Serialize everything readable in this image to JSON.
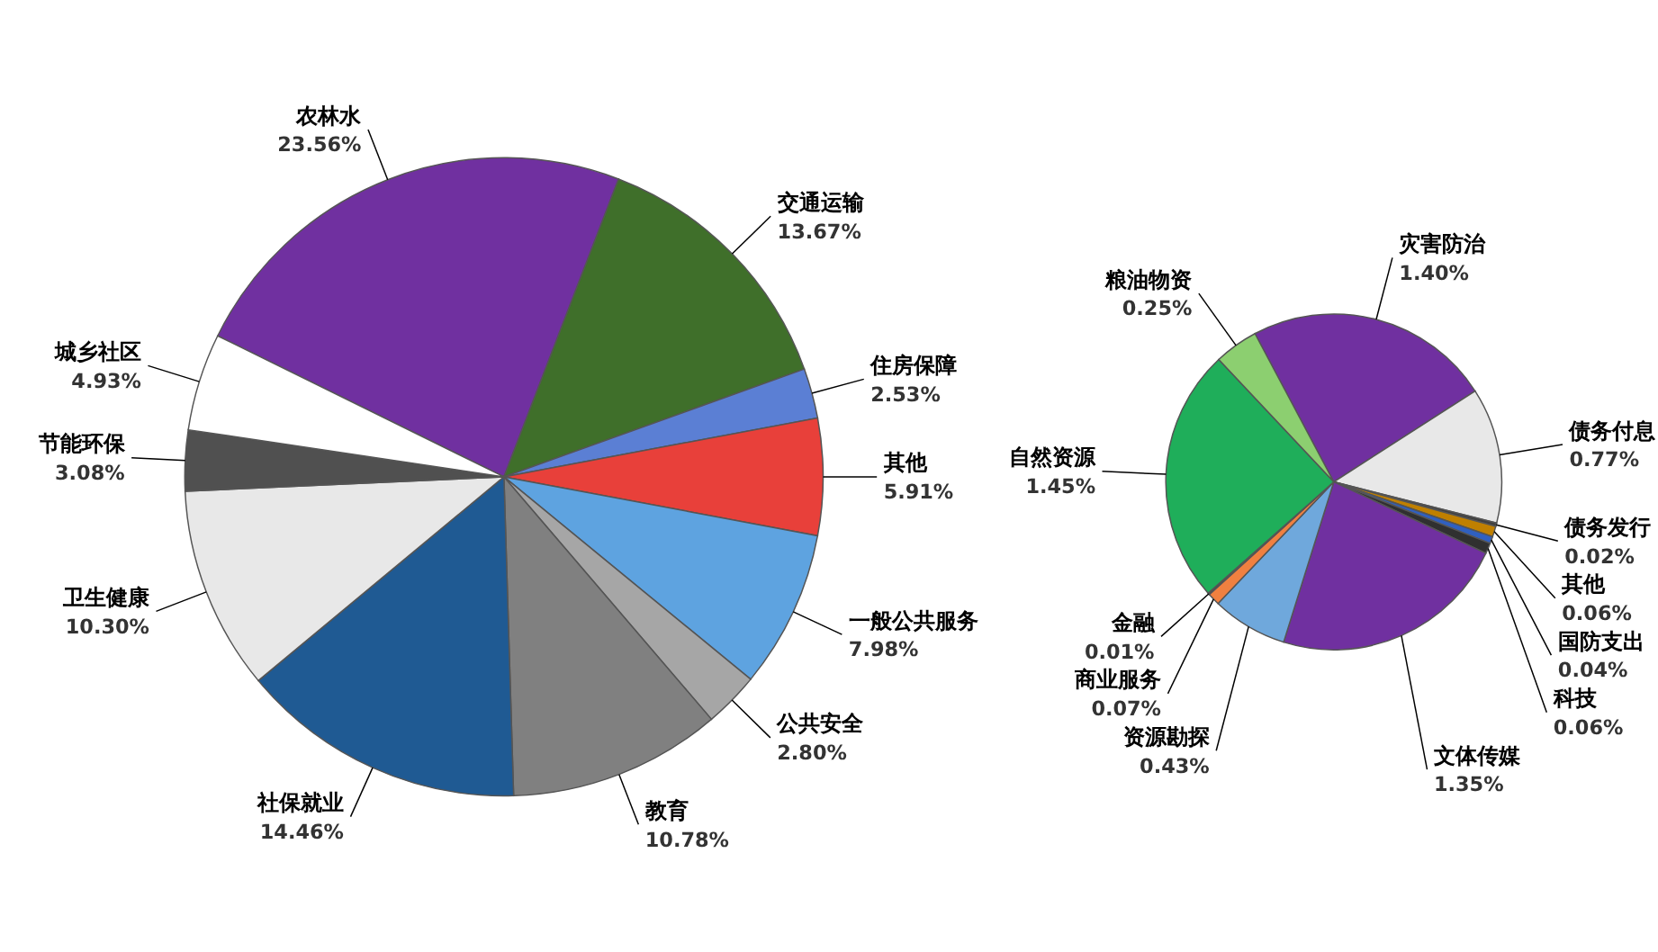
{
  "chart_data": [
    {
      "type": "pie",
      "categories": [
        "农林水",
        "交通运输",
        "住房保障",
        "其他",
        "一般公共服务",
        "公共安全",
        "教育",
        "社保就业",
        "卫生健康",
        "节能环保",
        "城乡社区"
      ],
      "values": [
        23.56,
        13.67,
        2.53,
        5.91,
        7.98,
        2.8,
        10.78,
        14.46,
        10.3,
        3.08,
        4.93
      ],
      "value_labels": [
        "23.56%",
        "13.67%",
        "2.53%",
        "5.91%",
        "7.98%",
        "2.80%",
        "10.78%",
        "14.46%",
        "10.30%",
        "3.08%",
        "4.93%"
      ],
      "colors": [
        "#7030a0",
        "#3f6f2a",
        "#5b7fd4",
        "#e8403a",
        "#5ea3e0",
        "#a6a6a6",
        "#808080",
        "#1f5a93",
        "#e8e8e8",
        "#505050",
        "#ffffff"
      ]
    },
    {
      "type": "pie",
      "categories": [
        "灾害防治",
        "债务付息",
        "债务发行",
        "其他",
        "国防支出",
        "科技",
        "文体传媒",
        "资源勘探",
        "商业服务",
        "金融",
        "自然资源",
        "粮油物资"
      ],
      "values": [
        1.4,
        0.77,
        0.02,
        0.06,
        0.04,
        0.06,
        1.35,
        0.43,
        0.07,
        0.01,
        1.45,
        0.25
      ],
      "value_labels": [
        "1.40%",
        "0.77%",
        "0.02%",
        "0.06%",
        "0.04%",
        "0.06%",
        "1.35%",
        "0.43%",
        "0.07%",
        "0.01%",
        "1.45%",
        "0.25%"
      ],
      "colors": [
        "#7030a0",
        "#e8e8e8",
        "#404040",
        "#c08000",
        "#3060c0",
        "#303030",
        "#7030a0",
        "#6fa8dc",
        "#f08040",
        "#404040",
        "#1fae5a",
        "#8ccf70"
      ]
    }
  ]
}
